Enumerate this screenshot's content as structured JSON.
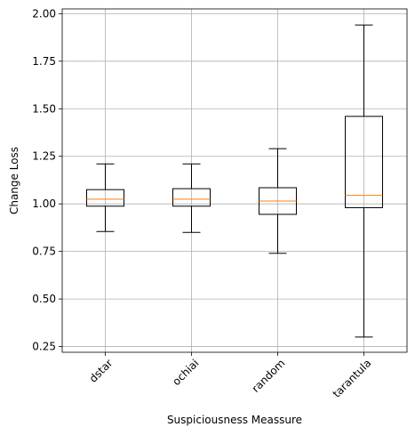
{
  "chart_data": {
    "type": "box",
    "xlabel": "Suspiciousness Meassure",
    "ylabel": "Change Loss",
    "ylim": [
      0.22,
      2.025
    ],
    "yticks": [
      0.25,
      0.5,
      0.75,
      1.0,
      1.25,
      1.5,
      1.75,
      2.0
    ],
    "ytick_labels": [
      "0.25",
      "0.50",
      "0.75",
      "1.00",
      "1.25",
      "1.50",
      "1.75",
      "2.00"
    ],
    "grid": true,
    "median_color": "#ff7f0e",
    "box_color": "#000000",
    "categories": [
      "dstar",
      "ochiai",
      "random",
      "tarantula"
    ],
    "boxes": [
      {
        "name": "dstar",
        "whislo": 0.855,
        "q1": 0.988,
        "med": 1.025,
        "q3": 1.075,
        "whishi": 1.21
      },
      {
        "name": "ochiai",
        "whislo": 0.85,
        "q1": 0.988,
        "med": 1.025,
        "q3": 1.08,
        "whishi": 1.21
      },
      {
        "name": "random",
        "whislo": 0.74,
        "q1": 0.945,
        "med": 1.015,
        "q3": 1.085,
        "whishi": 1.29
      },
      {
        "name": "tarantula",
        "whislo": 0.3,
        "q1": 0.98,
        "med": 1.045,
        "q3": 1.46,
        "whishi": 1.94
      }
    ]
  }
}
